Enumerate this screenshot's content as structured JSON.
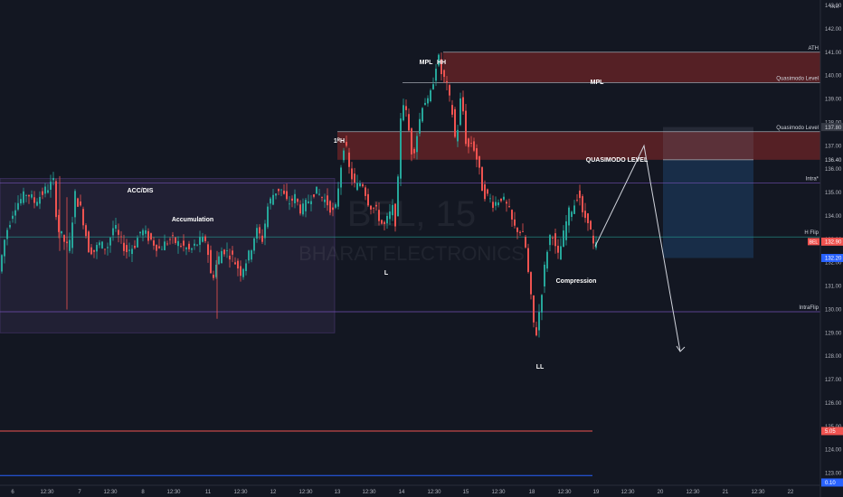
{
  "currency": "INR",
  "watermark": {
    "symbol": "BEL, 15",
    "name": "BHARAT ELECTRONICS"
  },
  "colors": {
    "background": "#131722",
    "bull": "#26a69a",
    "bear": "#ef5350",
    "accumulation_box": "rgba(120,95,160,0.14)",
    "mpl_zone": "rgba(140,40,40,0.55)",
    "qm_zone": "rgba(140,40,40,0.55)",
    "short_stop": "rgba(120,130,150,0.18)",
    "short_target": "rgba(33,80,130,0.40)",
    "line_purple": "#7e57c2",
    "line_teal": "#26a69a",
    "label_box": "#363a45"
  },
  "chart_data": {
    "type": "candlestick",
    "instrument": "BHARAT ELECTRONICS (BEL)",
    "interval": "15",
    "ylim": [
      122.6,
      143.9
    ],
    "y_ticks": [
      123.0,
      124.0,
      125.0,
      126.0,
      127.0,
      128.0,
      129.0,
      130.0,
      131.0,
      132.0,
      133.0,
      134.0,
      135.0,
      136.0,
      137.0,
      138.0,
      139.0,
      140.0,
      141.0,
      142.0,
      143.0
    ],
    "x_labels": [
      "6",
      "12:30",
      "7",
      "12:30",
      "8",
      "12:30",
      "11",
      "12:30",
      "12",
      "12:30",
      "13",
      "12:30",
      "14",
      "12:30",
      "15",
      "12:30",
      "18",
      "12:30",
      "19",
      "12:30",
      "20",
      "12:30",
      "21",
      "12:30",
      "22"
    ],
    "price_path": [
      [
        0,
        131.4
      ],
      [
        8,
        133.2
      ],
      [
        18,
        134.4
      ],
      [
        32,
        135.0
      ],
      [
        40,
        134.6
      ],
      [
        52,
        135.1
      ],
      [
        62,
        135.5
      ],
      [
        65,
        133.5
      ],
      [
        72,
        133.0
      ],
      [
        78,
        132.5
      ],
      [
        85,
        134.9
      ],
      [
        92,
        134.2
      ],
      [
        100,
        132.6
      ],
      [
        106,
        132.5
      ],
      [
        112,
        132.8
      ],
      [
        120,
        132.6
      ],
      [
        128,
        133.6
      ],
      [
        134,
        133.0
      ],
      [
        142,
        132.5
      ],
      [
        150,
        132.7
      ],
      [
        158,
        133.4
      ],
      [
        168,
        133.0
      ],
      [
        178,
        132.6
      ],
      [
        190,
        133.0
      ],
      [
        200,
        132.8
      ],
      [
        212,
        132.5
      ],
      [
        222,
        132.9
      ],
      [
        230,
        133.0
      ],
      [
        236,
        131.2
      ],
      [
        240,
        131.8
      ],
      [
        248,
        132.6
      ],
      [
        258,
        132.3
      ],
      [
        268,
        131.6
      ],
      [
        278,
        132.4
      ],
      [
        285,
        133.4
      ],
      [
        292,
        133.0
      ],
      [
        298,
        134.4
      ],
      [
        305,
        135.0
      ],
      [
        312,
        135.2
      ],
      [
        320,
        134.5
      ],
      [
        328,
        134.8
      ],
      [
        335,
        134.2
      ],
      [
        342,
        134.6
      ],
      [
        350,
        135.1
      ],
      [
        358,
        134.8
      ],
      [
        365,
        134.5
      ],
      [
        372,
        134.0
      ],
      [
        378,
        135.9
      ],
      [
        383,
        137.3
      ],
      [
        388,
        136.0
      ],
      [
        395,
        135.2
      ],
      [
        402,
        135.5
      ],
      [
        410,
        134.5
      ],
      [
        418,
        134.2
      ],
      [
        426,
        133.5
      ],
      [
        432,
        134.0
      ],
      [
        436,
        134.3
      ],
      [
        440,
        133.6
      ],
      [
        446,
        139.2
      ],
      [
        452,
        138.2
      ],
      [
        458,
        136.5
      ],
      [
        464,
        137.7
      ],
      [
        470,
        139.0
      ],
      [
        476,
        138.8
      ],
      [
        480,
        139.6
      ],
      [
        486,
        140.9
      ],
      [
        490,
        140.1
      ],
      [
        495,
        139.7
      ],
      [
        502,
        138.4
      ],
      [
        506,
        137.0
      ],
      [
        512,
        139.3
      ],
      [
        518,
        136.8
      ],
      [
        524,
        137.2
      ],
      [
        530,
        136.3
      ],
      [
        536,
        135.0
      ],
      [
        542,
        134.8
      ],
      [
        548,
        134.5
      ],
      [
        556,
        134.8
      ],
      [
        564,
        134.3
      ],
      [
        570,
        133.5
      ],
      [
        576,
        133.4
      ],
      [
        582,
        133.0
      ],
      [
        588,
        130.8
      ],
      [
        594,
        128.7
      ],
      [
        600,
        130.5
      ],
      [
        606,
        132.4
      ],
      [
        612,
        133.5
      ],
      [
        618,
        132.1
      ],
      [
        624,
        133.0
      ],
      [
        630,
        134.1
      ],
      [
        636,
        134.4
      ],
      [
        642,
        135.1
      ],
      [
        646,
        134.0
      ],
      [
        652,
        133.9
      ],
      [
        658,
        132.7
      ]
    ],
    "zones": [
      {
        "label": "MPL",
        "top": 141.0,
        "bottom": 139.7,
        "x_start": 490,
        "x_end": 907
      },
      {
        "label": "QUASIMODO LEVEL",
        "top": 137.6,
        "bottom": 136.4,
        "x_start": 373,
        "x_end": 907
      },
      {
        "label": "Accumulation",
        "top": 135.6,
        "bottom": 129.0,
        "x_start": 0,
        "x_end": 370
      }
    ],
    "horizontal_levels": [
      {
        "label": "ATH",
        "price": 141.0,
        "x_start": 490
      },
      {
        "label": "Quasimodo Level",
        "price": 139.7,
        "x_start": 445
      },
      {
        "label": "Quasimodo Level",
        "price": 137.6,
        "x_start": 373
      },
      {
        "label": "Intra*",
        "price": 135.4,
        "x_start": 0
      },
      {
        "label": "H Flip",
        "price": 133.1,
        "x_start": 0
      },
      {
        "label": "IntraFlip",
        "price": 129.9,
        "x_start": 0
      }
    ],
    "annotations": [
      "ACC/DIS",
      "Accumulation",
      "MPL",
      "HH",
      "L",
      "LL",
      "Compression",
      "MPL",
      "QUASIMODO LEVEL",
      "1ᴿH"
    ],
    "position": {
      "type": "short",
      "entry": 136.4,
      "stop": 137.8,
      "target": 132.2
    },
    "projection": [
      [
        658,
        132.7
      ],
      [
        712,
        137.0
      ],
      [
        752,
        128.2
      ]
    ],
    "price_labels": [
      {
        "text": "137.80",
        "price": 137.8,
        "style": "box"
      },
      {
        "text": "136.40",
        "price": 136.4,
        "style": "plain"
      },
      {
        "text": "132.90",
        "price": 132.9,
        "style": "red",
        "tag": "BEL"
      },
      {
        "text": "132.20",
        "price": 132.2,
        "style": "blue"
      },
      {
        "text": "5.05",
        "price": 124.8,
        "style": "red"
      },
      {
        "text": "0.10",
        "price": 122.6,
        "style": "blue"
      }
    ],
    "indicator_lines": [
      {
        "price": 124.8,
        "color": "#ef5350"
      },
      {
        "price": 122.9,
        "color": "#2962ff"
      }
    ]
  }
}
